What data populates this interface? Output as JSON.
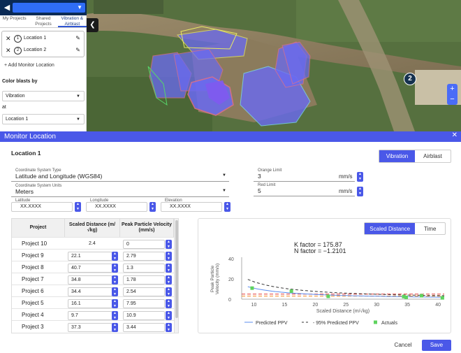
{
  "sidebar": {
    "tabs": [
      "My Projects",
      "Shared Projects",
      "Vibration & Airblast"
    ],
    "locations": [
      {
        "num": "1",
        "label": "Location 1"
      },
      {
        "num": "2",
        "label": "Location 2"
      }
    ],
    "add_monitor": "+ Add Monitor Location",
    "color_by_label": "Color blasts by",
    "color_by_value": "Vibration",
    "at_label": "at",
    "at_value": "Location 1"
  },
  "map": {
    "marker_label": "2",
    "zoom_in": "+",
    "zoom_out": "−"
  },
  "dialog": {
    "title": "Monitor Location",
    "close": "✕",
    "location_title": "Location 1",
    "mode_tabs": [
      "Vibration",
      "Airblast"
    ],
    "coordinate_system": {
      "label": "Coordinate System Type",
      "value": "Latitude and Longitude (WGS84)"
    },
    "coordinate_units": {
      "label": "Coordinate System Units",
      "value": "Meters"
    },
    "latitude": {
      "label": "Latitude",
      "value": "XX.XXXX"
    },
    "longitude": {
      "label": "Longitude",
      "value": "XX.XXXX"
    },
    "elevation": {
      "label": "Elevation",
      "value": "XX.XXXX"
    },
    "orange_limit": {
      "label": "Orange Limit",
      "value": "3",
      "unit": "mm/s"
    },
    "red_limit": {
      "label": "Red Limit",
      "value": "5",
      "unit": "mm/s"
    },
    "table": {
      "headers": [
        "Project",
        "Scaled Distance (m/√kg)",
        "Peak Particle Velocity (mm/s)"
      ],
      "rows": [
        {
          "project": "Project 10",
          "distance": "2.4",
          "ppv": "0"
        },
        {
          "project": "Project 9",
          "distance": "22.1",
          "ppv": "2.79"
        },
        {
          "project": "Project 8",
          "distance": "40.7",
          "ppv": "1.3"
        },
        {
          "project": "Project 7",
          "distance": "34.8",
          "ppv": "1.78"
        },
        {
          "project": "Project 6",
          "distance": "34.4",
          "ppv": "2.54"
        },
        {
          "project": "Project 5",
          "distance": "16.1",
          "ppv": "7.95"
        },
        {
          "project": "Project 4",
          "distance": "9.7",
          "ppv": "10.9"
        },
        {
          "project": "Project 3",
          "distance": "37.3",
          "ppv": "3.44"
        }
      ]
    },
    "chart_tabs": [
      "Scaled Distance",
      "Time"
    ],
    "k_factor": "K factor = 175.87",
    "n_factor": "N factor = −1.2101",
    "cancel": "Cancel",
    "save": "Save"
  },
  "chart_data": {
    "type": "scatter",
    "title": "",
    "xlabel": "Scaled Distance (m/√kg)",
    "ylabel": "Peak Particle Velocity (mm/s)",
    "xlim": [
      8,
      41
    ],
    "ylim": [
      0,
      40
    ],
    "x_ticks": [
      10,
      15,
      20,
      25,
      30,
      35,
      40
    ],
    "y_ticks": [
      0,
      20,
      40
    ],
    "orange_limit": 3,
    "red_limit": 5,
    "k": 175.87,
    "n": -1.2101,
    "series": [
      {
        "name": "Predicted PPV",
        "type": "line",
        "color": "#5b8def"
      },
      {
        "name": "95% Predicted PPV",
        "type": "dashed",
        "color": "#333333"
      },
      {
        "name": "Actuals",
        "type": "scatter",
        "color": "#5fd35f",
        "points": [
          [
            9.7,
            10.9
          ],
          [
            16.1,
            7.95
          ],
          [
            22.1,
            2.79
          ],
          [
            34.4,
            2.54
          ],
          [
            34.8,
            1.78
          ],
          [
            37.3,
            3.44
          ],
          [
            40.7,
            1.3
          ]
        ]
      }
    ],
    "legend": "bottom"
  },
  "colors": {
    "accent": "#4a58e8",
    "sidebar_header": "#0a2a55",
    "orange": "#f28c28",
    "red": "#e53935"
  }
}
